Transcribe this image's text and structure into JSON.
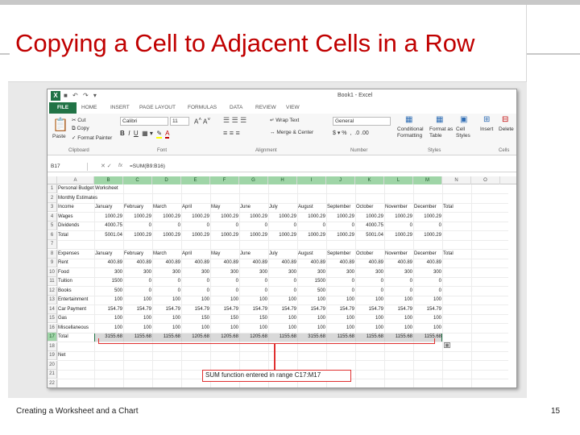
{
  "slide": {
    "title": "Copying a Cell to Adjacent Cells in a Row",
    "footer": "Creating a Worksheet and a Chart",
    "page_number": "15"
  },
  "excel": {
    "window_title": "Book1 - Excel",
    "tabs": [
      "FILE",
      "HOME",
      "INSERT",
      "PAGE LAYOUT",
      "FORMULAS",
      "DATA",
      "REVIEW",
      "VIEW"
    ],
    "ribbon": {
      "cut": "Cut",
      "copy": "Copy",
      "format_painter": "Format Painter",
      "paste": "Paste",
      "clipboard": "Clipboard",
      "font_name": "Calibri",
      "font_size": "11",
      "font_group": "Font",
      "wrap_text": "Wrap Text",
      "merge_center": "Merge & Center",
      "alignment": "Alignment",
      "number_format": "General",
      "number": "Number",
      "conditional_formatting": "Conditional Formatting",
      "format_as_table": "Format as Table",
      "cell_styles": "Cell Styles",
      "styles": "Styles",
      "insert": "Insert",
      "delete": "Delete",
      "cells": "Cells"
    },
    "name_box": "B17",
    "formula": "=SUM(B9:B16)",
    "columns": [
      "A",
      "B",
      "C",
      "D",
      "E",
      "F",
      "G",
      "H",
      "I",
      "J",
      "K",
      "L",
      "M",
      "N",
      "O"
    ],
    "rows": [
      {
        "n": "1",
        "cells": [
          "Personal Budget Worksheet"
        ]
      },
      {
        "n": "2",
        "cells": [
          "Monthly Estimates"
        ]
      },
      {
        "n": "3",
        "cells": [
          "Income",
          "January",
          "February",
          "March",
          "April",
          "May",
          "June",
          "July",
          "August",
          "September",
          "October",
          "November",
          "December",
          "Total"
        ]
      },
      {
        "n": "4",
        "cells": [
          "Wages",
          "1000.29",
          "1000.29",
          "1000.29",
          "1000.29",
          "1000.29",
          "1000.29",
          "1000.29",
          "1000.29",
          "1000.29",
          "1000.29",
          "1000.29",
          "1000.29",
          ""
        ]
      },
      {
        "n": "5",
        "cells": [
          "Dividends",
          "4000.75",
          "0",
          "0",
          "0",
          "0",
          "0",
          "0",
          "0",
          "0",
          "4000.75",
          "0",
          "0",
          ""
        ]
      },
      {
        "n": "6",
        "cells": [
          "Total",
          "5001.04",
          "1000.29",
          "1000.29",
          "1000.29",
          "1000.29",
          "1000.29",
          "1000.29",
          "1000.29",
          "1000.29",
          "5001.04",
          "1000.29",
          "1000.29",
          ""
        ]
      },
      {
        "n": "7",
        "cells": []
      },
      {
        "n": "8",
        "cells": [
          "Expenses",
          "January",
          "February",
          "March",
          "April",
          "May",
          "June",
          "July",
          "August",
          "September",
          "October",
          "November",
          "December",
          "Total"
        ]
      },
      {
        "n": "9",
        "cells": [
          "Rent",
          "400.89",
          "400.89",
          "400.89",
          "400.89",
          "400.89",
          "400.89",
          "400.89",
          "400.89",
          "400.89",
          "400.89",
          "400.89",
          "400.89",
          ""
        ]
      },
      {
        "n": "10",
        "cells": [
          "Food",
          "300",
          "300",
          "300",
          "300",
          "300",
          "300",
          "300",
          "300",
          "300",
          "300",
          "300",
          "300",
          ""
        ]
      },
      {
        "n": "11",
        "cells": [
          "Tuition",
          "1500",
          "0",
          "0",
          "0",
          "0",
          "0",
          "0",
          "1500",
          "0",
          "0",
          "0",
          "0",
          ""
        ]
      },
      {
        "n": "12",
        "cells": [
          "Books",
          "500",
          "0",
          "0",
          "0",
          "0",
          "0",
          "0",
          "500",
          "0",
          "0",
          "0",
          "0",
          ""
        ]
      },
      {
        "n": "13",
        "cells": [
          "Entertainment",
          "100",
          "100",
          "100",
          "100",
          "100",
          "100",
          "100",
          "100",
          "100",
          "100",
          "100",
          "100",
          ""
        ]
      },
      {
        "n": "14",
        "cells": [
          "Car Payment",
          "154.79",
          "154.79",
          "154.79",
          "154.79",
          "154.79",
          "154.79",
          "154.79",
          "154.79",
          "154.79",
          "154.79",
          "154.79",
          "154.79",
          ""
        ]
      },
      {
        "n": "15",
        "cells": [
          "Gas",
          "100",
          "100",
          "100",
          "150",
          "150",
          "150",
          "100",
          "100",
          "100",
          "100",
          "100",
          "100",
          ""
        ]
      },
      {
        "n": "16",
        "cells": [
          "Miscellaneous",
          "100",
          "100",
          "100",
          "100",
          "100",
          "100",
          "100",
          "100",
          "100",
          "100",
          "100",
          "100",
          ""
        ]
      },
      {
        "n": "17",
        "cells": [
          "Total",
          "3155.68",
          "1155.68",
          "1155.68",
          "1205.68",
          "1205.68",
          "1205.68",
          "1155.68",
          "3155.68",
          "1155.68",
          "1155.68",
          "1155.68",
          "1155.68",
          ""
        ]
      },
      {
        "n": "18",
        "cells": []
      },
      {
        "n": "19",
        "cells": [
          "Net"
        ]
      },
      {
        "n": "20",
        "cells": []
      },
      {
        "n": "21",
        "cells": []
      },
      {
        "n": "22",
        "cells": []
      }
    ]
  },
  "callout": {
    "text": "SUM function entered in range C17:M17"
  },
  "colors": {
    "title_red": "#c00000",
    "excel_green": "#217346",
    "callout_red": "#e03030"
  }
}
